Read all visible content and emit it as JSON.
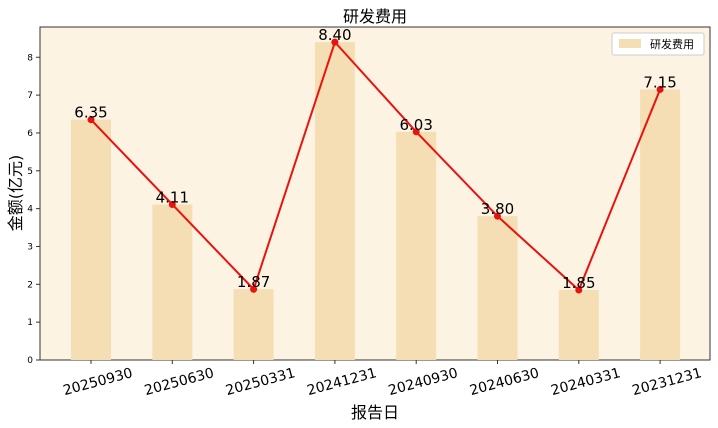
{
  "chart_data": {
    "type": "bar",
    "title": "研发费用",
    "xlabel": "报告日",
    "ylabel": "金额(亿元)",
    "categories": [
      "20250930",
      "20250630",
      "20250331",
      "20241231",
      "20240930",
      "20240630",
      "20240331",
      "20231231"
    ],
    "series": [
      {
        "name": "研发费用",
        "kind": "bar",
        "values": [
          6.35,
          4.11,
          1.87,
          8.4,
          6.03,
          3.8,
          1.85,
          7.15
        ]
      }
    ],
    "line_overlay": {
      "values": [
        6.35,
        4.11,
        1.87,
        8.4,
        6.03,
        3.8,
        1.85,
        7.15
      ]
    },
    "data_labels": [
      "6.35",
      "4.11",
      "1.87",
      "8.40",
      "6.03",
      "3.80",
      "1.85",
      "7.15"
    ],
    "ylim": [
      0,
      8.8
    ],
    "yticks": [
      0,
      1,
      2,
      3,
      4,
      5,
      6,
      7,
      8
    ],
    "grid": false,
    "legend_position": "top-right",
    "colors": {
      "bar": "#f5deb3",
      "line": "#e8130e",
      "plot_background": "#fdf3e3"
    }
  }
}
